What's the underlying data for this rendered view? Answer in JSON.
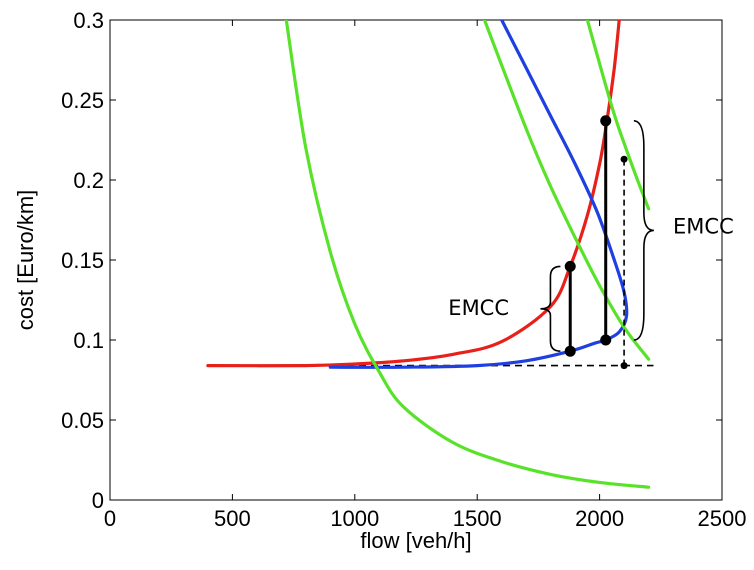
{
  "chart_data": {
    "type": "line",
    "title": "",
    "xlabel": "flow [veh/h]",
    "ylabel": "cost [Euro/km]",
    "xlim": [
      0,
      2500
    ],
    "ylim": [
      0,
      0.3
    ],
    "xticks": [
      "0",
      "500",
      "1000",
      "1500",
      "2000",
      "2500"
    ],
    "yticks": [
      "0",
      "0.05",
      "0.1",
      "0.15",
      "0.2",
      "0.25",
      "0.3"
    ],
    "grid": false,
    "legend": "none",
    "colors": {
      "red": "#e8201a",
      "blue": "#1f3fe0",
      "green": "#59e22a",
      "black": "#000000"
    },
    "series": [
      {
        "color": "red",
        "x": [
          400,
          800,
          1000,
          1200,
          1400,
          1600,
          1800,
          1880,
          1950,
          2000,
          2030,
          2060,
          2080
        ],
        "y": [
          0.084,
          0.084,
          0.085,
          0.087,
          0.091,
          0.099,
          0.121,
          0.146,
          0.178,
          0.21,
          0.237,
          0.27,
          0.3
        ]
      },
      {
        "color": "blue",
        "x": [
          900,
          1200,
          1500,
          1700,
          1880,
          1980,
          2025,
          2080,
          2110,
          2100,
          2060,
          1990,
          1900,
          1800,
          1700,
          1600
        ],
        "y": [
          0.083,
          0.083,
          0.084,
          0.087,
          0.093,
          0.098,
          0.1,
          0.105,
          0.115,
          0.13,
          0.15,
          0.18,
          0.21,
          0.24,
          0.27,
          0.3
        ]
      },
      {
        "color": "green",
        "x": [
          720,
          800,
          900,
          1000,
          1100,
          1200,
          1400,
          1600,
          1800,
          2000,
          2200
        ],
        "y": [
          0.3,
          0.22,
          0.155,
          0.11,
          0.08,
          0.058,
          0.036,
          0.024,
          0.016,
          0.011,
          0.008
        ]
      },
      {
        "color": "green",
        "x": [
          1530,
          1700,
          1800,
          1900,
          2000,
          2100,
          2200
        ],
        "y": [
          0.3,
          0.232,
          0.196,
          0.164,
          0.134,
          0.108,
          0.088
        ]
      },
      {
        "color": "green",
        "x": [
          1950,
          2050,
          2100,
          2150,
          2200
        ],
        "y": [
          0.3,
          0.246,
          0.223,
          0.202,
          0.182
        ]
      }
    ],
    "reference_line": {
      "style": "dashed",
      "color": "black",
      "x": [
        870,
        2220
      ],
      "y": [
        0.084,
        0.084
      ]
    },
    "markers": [
      {
        "x": 1880,
        "y": 0.146,
        "size": "large"
      },
      {
        "x": 1880,
        "y": 0.093,
        "size": "large"
      },
      {
        "x": 2025,
        "y": 0.237,
        "size": "large"
      },
      {
        "x": 2025,
        "y": 0.1,
        "size": "large"
      },
      {
        "x": 2100,
        "y": 0.213,
        "size": "small"
      },
      {
        "x": 2100,
        "y": 0.084,
        "size": "small"
      }
    ],
    "segments": [
      {
        "style": "solid",
        "x": [
          1880,
          1880
        ],
        "y": [
          0.093,
          0.146
        ]
      },
      {
        "style": "solid",
        "x": [
          2025,
          2025
        ],
        "y": [
          0.1,
          0.237
        ]
      },
      {
        "style": "dashed",
        "x": [
          2100,
          2100
        ],
        "y": [
          0.084,
          0.213
        ]
      }
    ],
    "annotations": [
      {
        "text": "EMCC",
        "x": 1630,
        "y": 0.12,
        "anchor": "end",
        "brace": {
          "side": "left",
          "x": 1840,
          "y_from": 0.093,
          "y_to": 0.146
        }
      },
      {
        "text": "EMCC",
        "x": 2300,
        "y": 0.171,
        "anchor": "start",
        "brace": {
          "side": "right",
          "x": 2140,
          "y_from": 0.1,
          "y_to": 0.237
        }
      }
    ]
  }
}
